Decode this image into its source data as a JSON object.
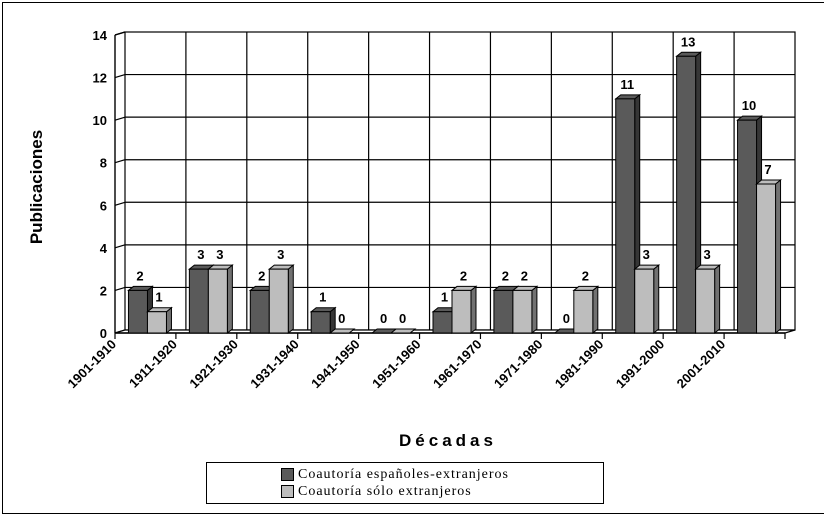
{
  "chart_data": {
    "type": "bar",
    "title": "",
    "xlabel": "Décadas",
    "ylabel": "Publicaciones",
    "ylim": [
      0,
      14
    ],
    "yticks": [
      0,
      2,
      4,
      6,
      8,
      10,
      12,
      14
    ],
    "grid": true,
    "legend_position": "bottom",
    "categories": [
      "1901-1910",
      "1911-1920",
      "1921-1930",
      "1931-1940",
      "1941-1950",
      "1951-1960",
      "1961-1970",
      "1971-1980",
      "1981-1990",
      "1991-2000",
      "2001-2010"
    ],
    "series": [
      {
        "name": "Coautoría españoles-extranjeros",
        "color": "#5a5a5a",
        "values": [
          2,
          3,
          2,
          1,
          0,
          1,
          2,
          0,
          11,
          13,
          10
        ]
      },
      {
        "name": "Coautoría sólo extranjeros",
        "color": "#bdbdbd",
        "values": [
          1,
          3,
          3,
          0,
          0,
          2,
          2,
          2,
          3,
          3,
          7
        ]
      }
    ]
  }
}
